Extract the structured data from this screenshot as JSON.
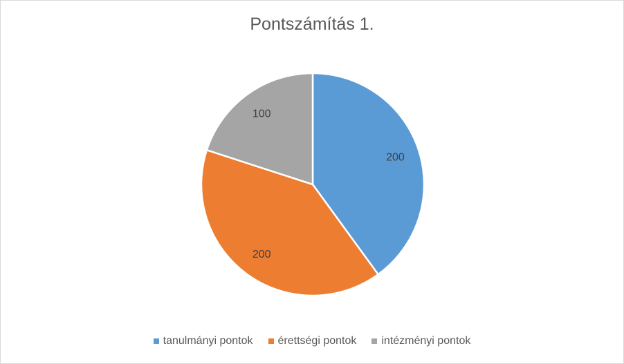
{
  "chart_data": {
    "type": "pie",
    "title": "Pontszámítás 1.",
    "categories": [
      "tanulmányi pontok",
      "érettségi pontok",
      "intézményi pontok"
    ],
    "values": [
      200,
      200,
      100
    ],
    "colors": [
      "#5B9BD5",
      "#ED7D31",
      "#A5A5A5"
    ],
    "data_labels": [
      "200",
      "200",
      "100"
    ],
    "legend_position": "bottom",
    "start_angle": "top, clockwise"
  }
}
